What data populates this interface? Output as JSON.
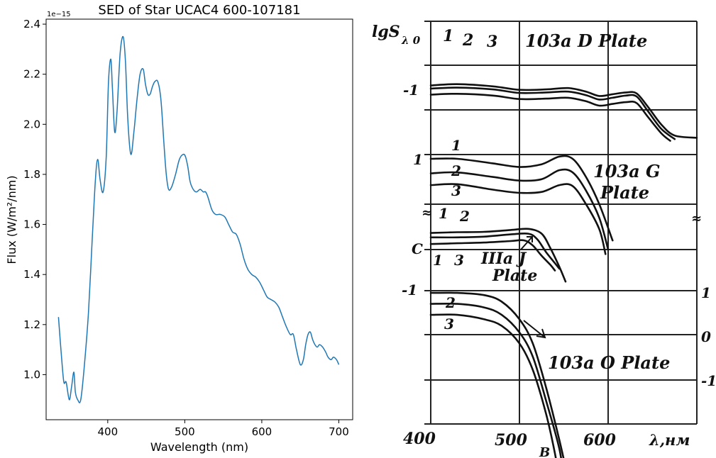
{
  "chart_data": [
    {
      "type": "line",
      "title": "SED of Star UCAC4 600-107181",
      "xlabel": "Wavelength (nm)",
      "ylabel": "Flux (W/m²/nm)",
      "offset_label": "1e−15",
      "xlim": [
        320,
        718
      ],
      "ylim": [
        0.82,
        2.42
      ],
      "x_ticks": [
        400,
        500,
        600,
        700
      ],
      "y_ticks": [
        1.0,
        1.2,
        1.4,
        1.6,
        1.8,
        2.0,
        2.2,
        2.4
      ],
      "y_tick_labels": [
        "1.0",
        "1.2",
        "1.4",
        "1.6",
        "1.8",
        "2.0",
        "2.2",
        "2.4"
      ],
      "grid": false,
      "line_color": "#1f77b4",
      "series": [
        {
          "x": [
            336,
            340,
            343,
            346,
            350,
            353,
            356,
            358,
            361,
            365,
            370,
            375,
            380,
            384,
            387,
            390,
            394,
            398,
            401,
            404,
            406,
            409,
            412,
            416,
            420,
            423,
            426,
            430,
            434,
            438,
            442,
            446,
            449,
            452,
            455,
            458,
            461,
            465,
            469,
            473,
            476,
            479,
            483,
            488,
            493,
            498,
            501,
            504,
            507,
            511,
            515,
            520,
            524,
            527,
            530,
            535,
            540,
            546,
            552,
            557,
            562,
            567,
            572,
            577,
            582,
            587,
            592,
            597,
            602,
            607,
            612,
            617,
            622,
            627,
            632,
            637,
            641,
            645,
            650,
            654,
            657,
            660,
            663,
            666,
            669,
            672,
            675,
            679,
            683,
            686,
            690,
            693,
            697,
            700
          ],
          "y": [
            1.23,
            1.07,
            0.97,
            0.97,
            0.9,
            0.95,
            1.01,
            0.93,
            0.9,
            0.9,
            1.05,
            1.25,
            1.55,
            1.78,
            1.86,
            1.78,
            1.73,
            1.87,
            2.17,
            2.26,
            2.15,
            1.97,
            2.05,
            2.28,
            2.35,
            2.25,
            2.02,
            1.88,
            1.97,
            2.1,
            2.2,
            2.22,
            2.16,
            2.12,
            2.12,
            2.15,
            2.17,
            2.17,
            2.1,
            1.92,
            1.8,
            1.74,
            1.75,
            1.8,
            1.86,
            1.88,
            1.87,
            1.83,
            1.77,
            1.74,
            1.73,
            1.74,
            1.73,
            1.73,
            1.71,
            1.66,
            1.64,
            1.64,
            1.63,
            1.6,
            1.57,
            1.56,
            1.52,
            1.46,
            1.42,
            1.4,
            1.39,
            1.37,
            1.34,
            1.31,
            1.3,
            1.29,
            1.27,
            1.23,
            1.19,
            1.16,
            1.16,
            1.1,
            1.04,
            1.06,
            1.12,
            1.16,
            1.17,
            1.14,
            1.12,
            1.11,
            1.12,
            1.11,
            1.09,
            1.07,
            1.06,
            1.07,
            1.06,
            1.04
          ]
        }
      ]
    },
    {
      "type": "line",
      "axis_top_label": "lgS",
      "axis_top_subscript": "λ 0",
      "x_tick_labels": [
        "400",
        "500",
        "600"
      ],
      "x_unit_label": "λ,нм",
      "x_sub_label": "B",
      "left_ticks": [
        "1",
        "-1",
        "1",
        "C",
        "-1"
      ],
      "right_ticks": [
        "1",
        "0",
        "-1"
      ],
      "panels": [
        {
          "label_lines": [
            "103a D Plate"
          ],
          "curve_numbers": [
            "1",
            "2",
            "3"
          ],
          "series": [
            {
              "name": "1",
              "x": [
                400,
                430,
                470,
                500,
                530,
                555,
                575,
                590,
                605,
                620,
                632,
                645,
                660,
                675,
                700
              ],
              "y": [
                -0.46,
                -0.43,
                -0.48,
                -0.56,
                -0.55,
                -0.52,
                -0.6,
                -0.7,
                -0.66,
                -0.62,
                -0.64,
                -0.95,
                -1.35,
                -1.6,
                -1.65
              ]
            },
            {
              "name": "2",
              "x": [
                400,
                430,
                470,
                500,
                530,
                555,
                575,
                590,
                605,
                620,
                632,
                645,
                660,
                675
              ],
              "y": [
                -0.53,
                -0.51,
                -0.55,
                -0.63,
                -0.62,
                -0.6,
                -0.68,
                -0.78,
                -0.74,
                -0.69,
                -0.71,
                -1.05,
                -1.45,
                -1.68
              ]
            },
            {
              "name": "3",
              "x": [
                400,
                430,
                470,
                500,
                530,
                555,
                575,
                590,
                605,
                620,
                632,
                645,
                660,
                670
              ],
              "y": [
                -0.67,
                -0.65,
                -0.69,
                -0.77,
                -0.76,
                -0.74,
                -0.82,
                -0.92,
                -0.88,
                -0.84,
                -0.86,
                -1.18,
                -1.55,
                -1.72
              ]
            }
          ]
        },
        {
          "label_lines": [
            "103a G",
            "Plate"
          ],
          "curve_numbers": [
            "1",
            "2",
            "3"
          ],
          "series": [
            {
              "name": "1",
              "x": [
                400,
                430,
                470,
                500,
                525,
                545,
                560,
                575,
                590,
                605
              ],
              "y": [
                1.0,
                1.0,
                0.9,
                0.82,
                0.88,
                1.05,
                1.0,
                0.6,
                0.0,
                -0.8
              ]
            },
            {
              "name": "2",
              "x": [
                400,
                430,
                470,
                500,
                525,
                545,
                560,
                575,
                590,
                600
              ],
              "y": [
                0.68,
                0.7,
                0.6,
                0.52,
                0.55,
                0.75,
                0.7,
                0.3,
                -0.3,
                -1.0
              ]
            },
            {
              "name": "3",
              "x": [
                400,
                430,
                470,
                500,
                525,
                545,
                560,
                575,
                590,
                597
              ],
              "y": [
                0.42,
                0.44,
                0.32,
                0.25,
                0.27,
                0.42,
                0.4,
                0.0,
                -0.55,
                -1.1
              ]
            }
          ]
        },
        {
          "label_lines": [
            "IIIa J",
            "Plate"
          ],
          "curve_numbers": [
            "1",
            "2",
            "3"
          ],
          "series": [
            {
              "name": "1",
              "x": [
                400,
                430,
                460,
                490,
                510,
                525,
                535,
                545,
                552
              ],
              "y": [
                0.22,
                0.24,
                0.25,
                0.3,
                0.33,
                0.2,
                -0.2,
                -0.7,
                -1.1
              ]
            },
            {
              "name": "2",
              "x": [
                400,
                430,
                460,
                490,
                510,
                520,
                530,
                540,
                545
              ],
              "y": [
                0.1,
                0.1,
                0.12,
                0.18,
                0.2,
                0.05,
                -0.3,
                -0.6,
                -0.75
              ]
            },
            {
              "name": "3",
              "x": [
                400,
                430,
                460,
                490,
                505,
                515,
                525,
                535,
                540
              ],
              "y": [
                -0.08,
                -0.06,
                -0.04,
                0.0,
                0.02,
                -0.12,
                -0.4,
                -0.65,
                -0.8
              ]
            }
          ]
        },
        {
          "label_lines": [
            "103a O Plate"
          ],
          "curve_numbers": [
            "1",
            "2",
            "3"
          ],
          "series": [
            {
              "name": "1",
              "x": [
                400,
                430,
                460,
                480,
                500,
                515,
                530,
                545,
                555
              ],
              "y": [
                0.95,
                0.95,
                0.9,
                0.75,
                0.35,
                -0.2,
                -1.2,
                -2.4,
                -3.3
              ]
            },
            {
              "name": "2",
              "x": [
                400,
                430,
                460,
                480,
                500,
                515,
                530,
                545,
                550
              ],
              "y": [
                0.7,
                0.7,
                0.62,
                0.45,
                0.05,
                -0.5,
                -1.5,
                -2.6,
                -3.3
              ]
            },
            {
              "name": "3",
              "x": [
                400,
                430,
                460,
                480,
                500,
                515,
                530,
                540,
                545
              ],
              "y": [
                0.45,
                0.45,
                0.35,
                0.2,
                -0.2,
                -0.8,
                -1.8,
                -2.7,
                -3.3
              ]
            }
          ]
        }
      ]
    }
  ]
}
